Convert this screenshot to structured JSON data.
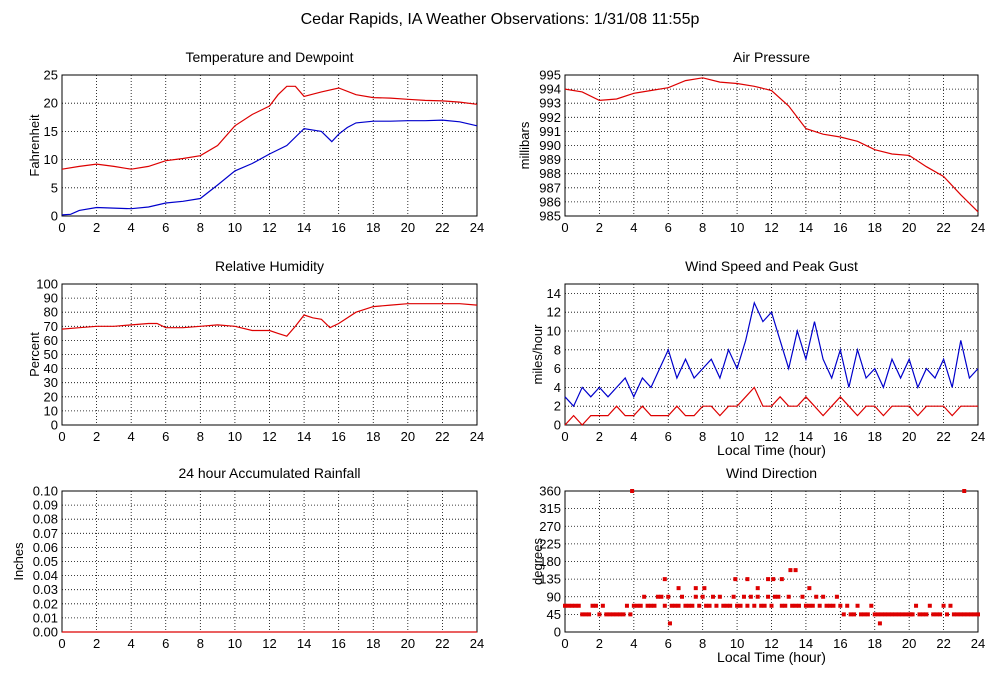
{
  "page_title": "Cedar Rapids, IA Weather Observations: 1/31/08 11:55p",
  "colors": {
    "red": "#dd0000",
    "blue": "#0000cc",
    "grid": "#000000",
    "background": "#ffffff"
  },
  "chart_data": [
    {
      "id": "temp",
      "type": "line",
      "title": "Temperature and Dewpoint",
      "ylabel": "Fahrenheit",
      "xlabel": "",
      "xlim": [
        0,
        24
      ],
      "ylim": [
        0,
        25
      ],
      "xticks": [
        0,
        2,
        4,
        6,
        8,
        10,
        12,
        14,
        16,
        18,
        20,
        22,
        24
      ],
      "yticks": [
        0,
        5,
        10,
        15,
        20,
        25
      ],
      "grid": true,
      "series": [
        {
          "color": "#dd0000",
          "x": [
            0,
            1,
            2,
            3,
            4,
            5,
            6,
            7,
            8,
            9,
            10,
            11,
            12,
            12.5,
            13,
            13.5,
            14,
            14.5,
            15,
            16,
            17,
            18,
            19,
            20,
            21,
            22,
            23,
            24
          ],
          "y": [
            8.3,
            8.8,
            9.2,
            8.8,
            8.3,
            8.8,
            9.8,
            10.2,
            10.7,
            12.5,
            16,
            18,
            19.5,
            21.5,
            23,
            23,
            21.2,
            21.6,
            22,
            22.7,
            21.5,
            21,
            20.9,
            20.7,
            20.5,
            20.4,
            20.2,
            19.8
          ]
        },
        {
          "color": "#0000cc",
          "x": [
            0,
            0.5,
            1,
            2,
            3,
            4,
            5,
            6,
            7,
            8,
            9,
            10,
            11,
            12,
            13,
            14,
            15,
            15.6,
            16,
            16.5,
            17,
            18,
            19,
            20,
            21,
            22,
            23,
            24
          ],
          "y": [
            0.2,
            0.3,
            1,
            1.5,
            1.4,
            1.3,
            1.6,
            2.3,
            2.6,
            3.1,
            5.5,
            8,
            9.3,
            11,
            12.5,
            15.5,
            15,
            13.2,
            14.5,
            15.7,
            16.5,
            16.8,
            16.8,
            16.9,
            16.9,
            17,
            16.7,
            16
          ]
        }
      ]
    },
    {
      "id": "pressure",
      "type": "line",
      "title": "Air Pressure",
      "ylabel": "millibars",
      "xlabel": "",
      "xlim": [
        0,
        24
      ],
      "ylim": [
        985,
        995
      ],
      "xticks": [
        0,
        2,
        4,
        6,
        8,
        10,
        12,
        14,
        16,
        18,
        20,
        22,
        24
      ],
      "yticks": [
        985,
        986,
        987,
        988,
        989,
        990,
        991,
        992,
        993,
        994,
        995
      ],
      "grid": true,
      "series": [
        {
          "color": "#dd0000",
          "x": [
            0,
            1,
            2,
            3,
            4,
            5,
            6,
            7,
            8,
            9,
            10,
            11,
            12,
            13,
            14,
            15,
            16,
            17,
            18,
            19,
            20,
            21,
            22,
            23,
            24
          ],
          "y": [
            994,
            993.8,
            993.2,
            993.3,
            993.7,
            993.9,
            994.1,
            994.6,
            994.8,
            994.5,
            994.4,
            994.2,
            993.9,
            992.8,
            991.2,
            990.8,
            990.6,
            990.3,
            989.7,
            989.4,
            989.3,
            988.5,
            987.8,
            986.5,
            985.3
          ]
        }
      ]
    },
    {
      "id": "humidity",
      "type": "line",
      "title": "Relative Humidity",
      "ylabel": "Percent",
      "xlabel": "",
      "xlim": [
        0,
        24
      ],
      "ylim": [
        0,
        100
      ],
      "xticks": [
        0,
        2,
        4,
        6,
        8,
        10,
        12,
        14,
        16,
        18,
        20,
        22,
        24
      ],
      "yticks": [
        0,
        10,
        20,
        30,
        40,
        50,
        60,
        70,
        80,
        90,
        100
      ],
      "grid": true,
      "series": [
        {
          "color": "#dd0000",
          "x": [
            0,
            1,
            2,
            3,
            4,
            5,
            5.5,
            6,
            7,
            8,
            9,
            10,
            11,
            12,
            12.5,
            13,
            13.5,
            14,
            14.5,
            15,
            15.5,
            16,
            17,
            18,
            19,
            20,
            21,
            22,
            23,
            24
          ],
          "y": [
            68,
            69,
            70,
            70,
            71,
            72,
            72,
            69,
            69,
            70,
            71,
            70,
            67,
            67,
            65,
            63,
            70,
            78,
            76,
            75,
            69,
            72,
            80,
            84,
            85,
            86,
            86,
            86,
            86,
            85
          ]
        }
      ]
    },
    {
      "id": "wind",
      "type": "line",
      "title": "Wind Speed and Peak Gust",
      "ylabel": "miles/hour",
      "xlabel": "Local Time (hour)",
      "xlim": [
        0,
        24
      ],
      "ylim": [
        0,
        15
      ],
      "xticks": [
        0,
        2,
        4,
        6,
        8,
        10,
        12,
        14,
        16,
        18,
        20,
        22,
        24
      ],
      "yticks": [
        0,
        2,
        4,
        6,
        8,
        10,
        12,
        14
      ],
      "grid": true,
      "series": [
        {
          "color": "#0000cc",
          "x": [
            0,
            0.5,
            1,
            1.5,
            2,
            2.5,
            3,
            3.5,
            4,
            4.5,
            5,
            5.5,
            6,
            6.5,
            7,
            7.5,
            8,
            8.5,
            9,
            9.5,
            10,
            10.5,
            11,
            11.5,
            12,
            12.5,
            13,
            13.5,
            14,
            14.5,
            15,
            15.5,
            16,
            16.5,
            17,
            17.5,
            18,
            18.5,
            19,
            19.5,
            20,
            20.5,
            21,
            21.5,
            22,
            22.5,
            23,
            23.5,
            24
          ],
          "y": [
            3,
            2,
            4,
            3,
            4,
            3,
            4,
            5,
            3,
            5,
            4,
            6,
            8,
            5,
            7,
            5,
            6,
            7,
            5,
            8,
            6,
            9,
            13,
            11,
            12,
            9,
            6,
            10,
            7,
            11,
            7,
            5,
            8,
            4,
            8,
            5,
            6,
            4,
            7,
            5,
            7,
            4,
            6,
            5,
            7,
            4,
            9,
            5,
            6
          ]
        },
        {
          "color": "#dd0000",
          "x": [
            0,
            0.5,
            1,
            1.5,
            2,
            2.5,
            3,
            3.5,
            4,
            4.5,
            5,
            5.5,
            6,
            6.5,
            7,
            7.5,
            8,
            8.5,
            9,
            9.5,
            10,
            10.5,
            11,
            11.5,
            12,
            12.5,
            13,
            13.5,
            14,
            14.5,
            15,
            15.5,
            16,
            16.5,
            17,
            17.5,
            18,
            18.5,
            19,
            19.5,
            20,
            20.5,
            21,
            21.5,
            22,
            22.5,
            23,
            23.5,
            24
          ],
          "y": [
            0,
            1,
            0,
            1,
            1,
            1,
            2,
            1,
            1,
            2,
            1,
            1,
            1,
            2,
            1,
            1,
            2,
            2,
            1,
            2,
            2,
            3,
            4,
            2,
            2,
            3,
            2,
            2,
            3,
            2,
            1,
            2,
            3,
            2,
            1,
            2,
            2,
            1,
            2,
            2,
            2,
            1,
            2,
            2,
            2,
            1,
            2,
            2,
            2
          ]
        }
      ]
    },
    {
      "id": "rain",
      "type": "line",
      "title": "24 hour Accumulated Rainfall",
      "ylabel": "Inches",
      "xlabel": "",
      "xlim": [
        0,
        24
      ],
      "ylim": [
        0,
        0.1
      ],
      "xticks": [
        0,
        2,
        4,
        6,
        8,
        10,
        12,
        14,
        16,
        18,
        20,
        22,
        24
      ],
      "yticks": [
        "0.00",
        "0.01",
        "0.02",
        "0.03",
        "0.04",
        "0.05",
        "0.06",
        "0.07",
        "0.08",
        "0.09",
        "0.10"
      ],
      "grid": true,
      "series": [
        {
          "color": "#dd0000",
          "x": [
            0,
            24
          ],
          "y": [
            0,
            0
          ]
        }
      ]
    },
    {
      "id": "direction",
      "type": "scatter",
      "title": "Wind Direction",
      "ylabel": "degrees",
      "xlabel": "Local Time (hour)",
      "xlim": [
        0,
        24
      ],
      "ylim": [
        0,
        360
      ],
      "xticks": [
        0,
        2,
        4,
        6,
        8,
        10,
        12,
        14,
        16,
        18,
        20,
        22,
        24
      ],
      "yticks": [
        0,
        45,
        90,
        135,
        180,
        225,
        270,
        315,
        360
      ],
      "grid": true,
      "series": [
        {
          "color": "#dd0000",
          "x": [
            0,
            0.2,
            0.4,
            0.6,
            0.8,
            1,
            1.2,
            1.4,
            1.6,
            1.8,
            2,
            2.2,
            2.4,
            2.6,
            2.8,
            3,
            3.2,
            3.4,
            3.6,
            3.8,
            4,
            4.2,
            4.4,
            4.6,
            4.8,
            5,
            5.2,
            5.4,
            5.6,
            5.8,
            6,
            6.2,
            6.4,
            6.6,
            6.8,
            7,
            7.2,
            7.4,
            7.6,
            7.8,
            8,
            8.2,
            8.4,
            8.6,
            8.8,
            9,
            9.2,
            9.4,
            9.6,
            9.8,
            10,
            10.2,
            10.4,
            10.6,
            10.8,
            11,
            11.2,
            11.4,
            11.6,
            11.8,
            12,
            12.2,
            12.4,
            12.6,
            12.8,
            13,
            13.2,
            13.4,
            13.6,
            13.8,
            14,
            14.2,
            14.4,
            14.6,
            14.8,
            15,
            15.2,
            15.4,
            15.6,
            15.8,
            16,
            16.2,
            16.4,
            16.6,
            16.8,
            17,
            17.2,
            17.4,
            17.6,
            17.8,
            18,
            18.2,
            18.4,
            18.6,
            18.8,
            19,
            19.2,
            19.4,
            19.6,
            19.8,
            20,
            20.2,
            20.4,
            20.6,
            20.8,
            21,
            21.2,
            21.4,
            21.6,
            21.8,
            22,
            22.2,
            22.4,
            22.6,
            22.8,
            23,
            23.2,
            23.4,
            23.6,
            23.8,
            24,
            3.9,
            5.8,
            6.1,
            6.6,
            7.6,
            8.1,
            9.9,
            10.6,
            11.2,
            11.8,
            12.1,
            12.6,
            13.1,
            13.4,
            14.2,
            18.3,
            20.1,
            23.2
          ],
          "y": [
            67,
            67,
            67,
            67,
            67,
            45,
            45,
            45,
            67,
            67,
            45,
            67,
            45,
            45,
            45,
            45,
            45,
            45,
            67,
            45,
            67,
            67,
            67,
            90,
            67,
            67,
            67,
            90,
            90,
            67,
            90,
            67,
            67,
            67,
            90,
            67,
            67,
            67,
            90,
            67,
            90,
            67,
            67,
            90,
            67,
            90,
            67,
            67,
            67,
            90,
            67,
            67,
            90,
            67,
            90,
            67,
            90,
            67,
            67,
            90,
            67,
            90,
            90,
            67,
            67,
            90,
            67,
            67,
            67,
            90,
            67,
            67,
            67,
            90,
            67,
            90,
            67,
            67,
            67,
            90,
            67,
            45,
            67,
            45,
            45,
            67,
            45,
            45,
            45,
            67,
            45,
            45,
            45,
            45,
            45,
            45,
            45,
            45,
            45,
            45,
            45,
            45,
            67,
            45,
            45,
            45,
            67,
            45,
            45,
            45,
            67,
            45,
            67,
            45,
            45,
            45,
            45,
            45,
            45,
            45,
            45,
            360,
            135,
            22,
            112,
            112,
            112,
            135,
            135,
            112,
            135,
            135,
            135,
            158,
            158,
            112,
            22,
            45,
            360
          ]
        }
      ]
    }
  ]
}
